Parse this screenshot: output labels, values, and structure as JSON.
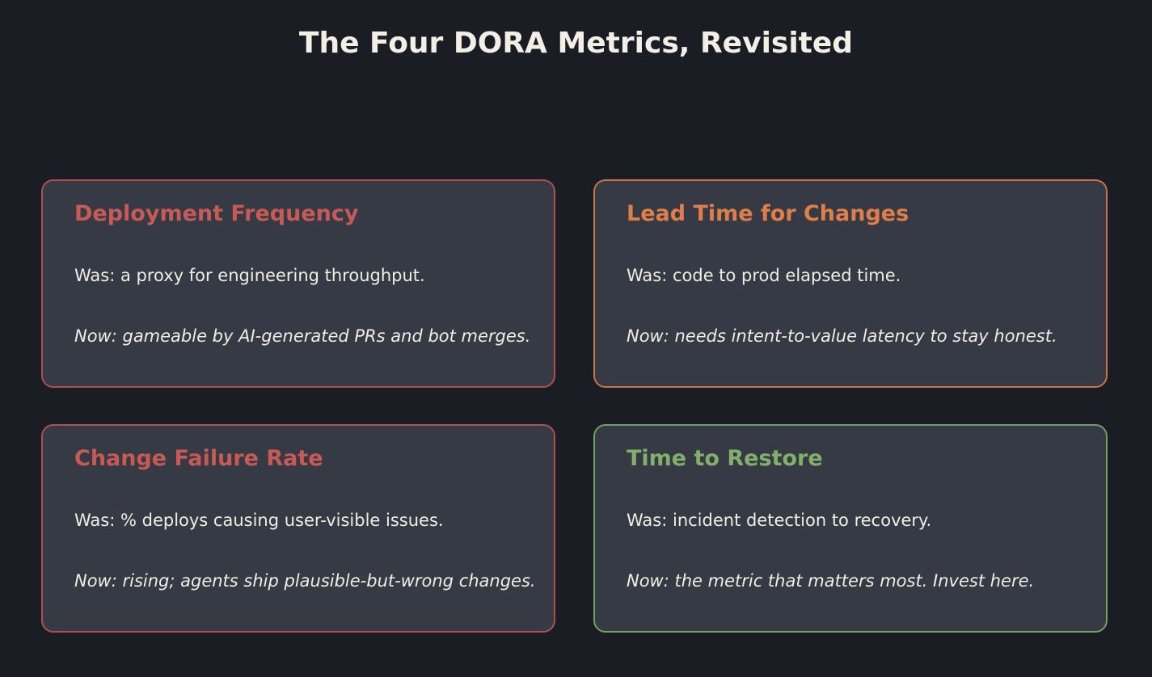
{
  "title": "The Four DORA Metrics, Revisited",
  "cards": [
    {
      "title": "Deployment Frequency",
      "was": "Was: a proxy for engineering throughput.",
      "now": "Now: gameable by AI-generated PRs and bot merges.",
      "accent": "#c85a55",
      "border": "#b0504d"
    },
    {
      "title": "Lead Time for Changes",
      "was": "Was: code to prod elapsed time.",
      "now": "Now: needs intent-to-value latency to stay honest.",
      "accent": "#e07e4a",
      "border": "#c77447"
    },
    {
      "title": "Change Failure Rate",
      "was": "Was: % deploys causing user-visible issues.",
      "now": "Now: rising; agents ship plausible-but-wrong changes.",
      "accent": "#c85a55",
      "border": "#b0504d"
    },
    {
      "title": "Time to Restore",
      "was": "Was: incident detection to recovery.",
      "now": "Now: the metric that matters most. Invest here.",
      "accent": "#82b06c",
      "border": "#72a05e"
    }
  ]
}
